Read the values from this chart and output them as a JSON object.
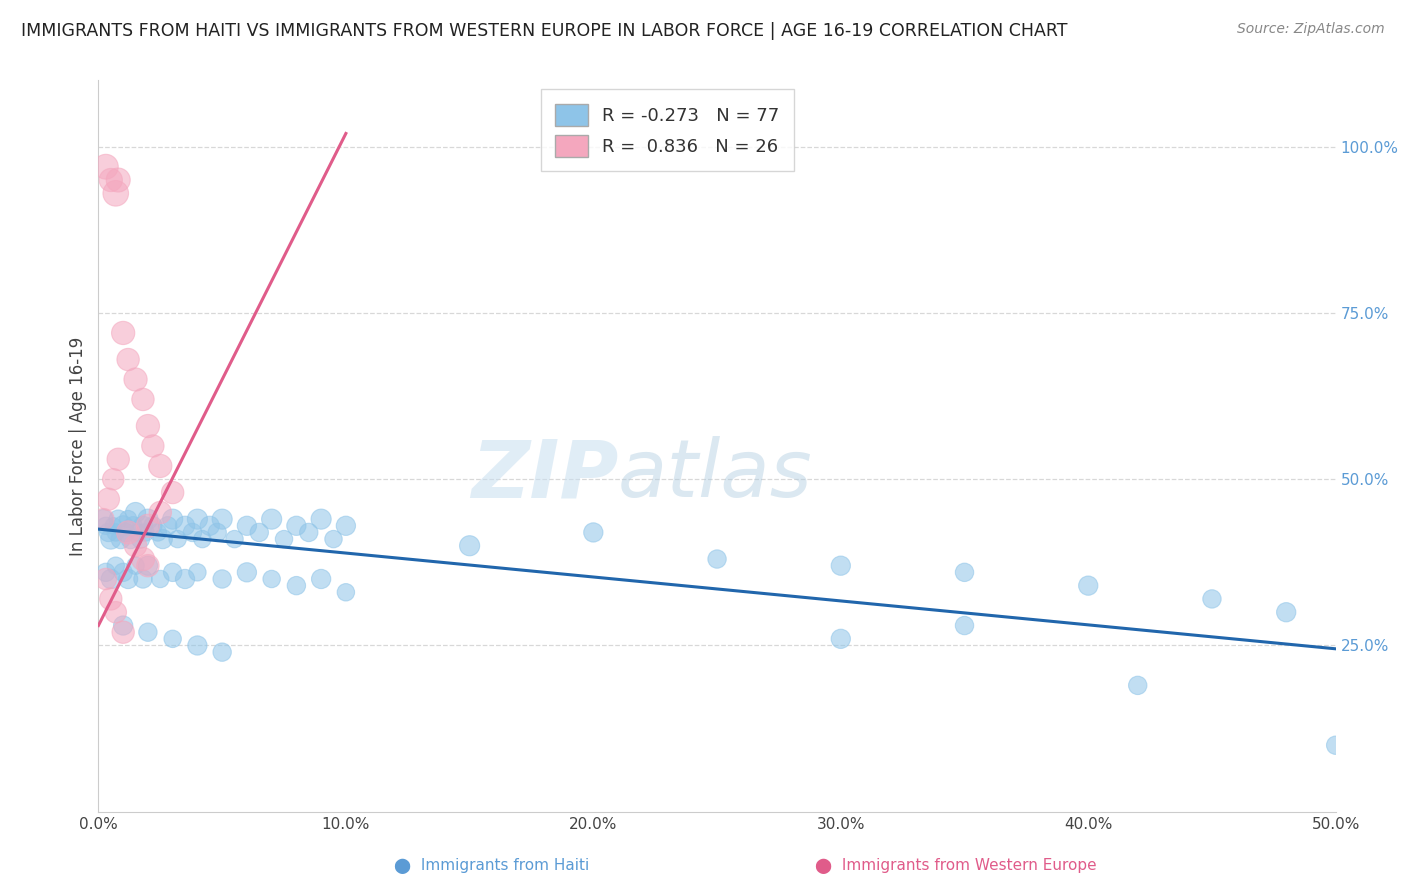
{
  "title": "IMMIGRANTS FROM HAITI VS IMMIGRANTS FROM WESTERN EUROPE IN LABOR FORCE | AGE 16-19 CORRELATION CHART",
  "source": "Source: ZipAtlas.com",
  "ylabel": "In Labor Force | Age 16-19",
  "legend_haiti": "Immigrants from Haiti",
  "legend_europe": "Immigrants from Western Europe",
  "r_haiti": -0.273,
  "n_haiti": 77,
  "r_europe": 0.836,
  "n_europe": 26,
  "xlim": [
    0.0,
    0.5
  ],
  "ylim": [
    0.0,
    1.1
  ],
  "xtick_labels": [
    "0.0%",
    "10.0%",
    "20.0%",
    "30.0%",
    "40.0%",
    "50.0%"
  ],
  "xtick_vals": [
    0.0,
    0.1,
    0.2,
    0.3,
    0.4,
    0.5
  ],
  "ytick_right_labels": [
    "25.0%",
    "50.0%",
    "75.0%",
    "100.0%"
  ],
  "ytick_right_vals": [
    0.25,
    0.5,
    0.75,
    1.0
  ],
  "color_haiti": "#8ec4e8",
  "color_europe": "#f4a7be",
  "color_haiti_line": "#2166ac",
  "color_europe_line": "#e05c8a",
  "watermark_zip": "ZIP",
  "watermark_atlas": "atlas",
  "background_color": "#ffffff",
  "grid_color": "#d8d8d8",
  "haiti_points": [
    [
      0.002,
      0.44,
      55
    ],
    [
      0.003,
      0.43,
      45
    ],
    [
      0.004,
      0.42,
      50
    ],
    [
      0.005,
      0.41,
      60
    ],
    [
      0.006,
      0.43,
      40
    ],
    [
      0.007,
      0.42,
      45
    ],
    [
      0.008,
      0.44,
      50
    ],
    [
      0.009,
      0.41,
      55
    ],
    [
      0.01,
      0.43,
      60
    ],
    [
      0.011,
      0.42,
      50
    ],
    [
      0.012,
      0.44,
      45
    ],
    [
      0.013,
      0.41,
      55
    ],
    [
      0.014,
      0.43,
      50
    ],
    [
      0.015,
      0.45,
      60
    ],
    [
      0.016,
      0.42,
      45
    ],
    [
      0.017,
      0.41,
      50
    ],
    [
      0.018,
      0.43,
      55
    ],
    [
      0.019,
      0.42,
      45
    ],
    [
      0.02,
      0.44,
      60
    ],
    [
      0.022,
      0.43,
      50
    ],
    [
      0.024,
      0.42,
      45
    ],
    [
      0.026,
      0.41,
      55
    ],
    [
      0.028,
      0.43,
      50
    ],
    [
      0.03,
      0.44,
      60
    ],
    [
      0.032,
      0.41,
      45
    ],
    [
      0.035,
      0.43,
      55
    ],
    [
      0.038,
      0.42,
      50
    ],
    [
      0.04,
      0.44,
      60
    ],
    [
      0.042,
      0.41,
      45
    ],
    [
      0.045,
      0.43,
      55
    ],
    [
      0.048,
      0.42,
      50
    ],
    [
      0.05,
      0.44,
      60
    ],
    [
      0.055,
      0.41,
      45
    ],
    [
      0.06,
      0.43,
      55
    ],
    [
      0.065,
      0.42,
      50
    ],
    [
      0.07,
      0.44,
      60
    ],
    [
      0.075,
      0.41,
      45
    ],
    [
      0.08,
      0.43,
      55
    ],
    [
      0.085,
      0.42,
      50
    ],
    [
      0.09,
      0.44,
      60
    ],
    [
      0.095,
      0.41,
      45
    ],
    [
      0.1,
      0.43,
      55
    ],
    [
      0.003,
      0.36,
      50
    ],
    [
      0.005,
      0.35,
      55
    ],
    [
      0.007,
      0.37,
      45
    ],
    [
      0.01,
      0.36,
      50
    ],
    [
      0.012,
      0.35,
      55
    ],
    [
      0.015,
      0.37,
      45
    ],
    [
      0.018,
      0.35,
      50
    ],
    [
      0.02,
      0.37,
      55
    ],
    [
      0.025,
      0.35,
      45
    ],
    [
      0.03,
      0.36,
      50
    ],
    [
      0.035,
      0.35,
      55
    ],
    [
      0.04,
      0.36,
      45
    ],
    [
      0.05,
      0.35,
      50
    ],
    [
      0.06,
      0.36,
      55
    ],
    [
      0.07,
      0.35,
      45
    ],
    [
      0.08,
      0.34,
      50
    ],
    [
      0.09,
      0.35,
      55
    ],
    [
      0.1,
      0.33,
      45
    ],
    [
      0.01,
      0.28,
      55
    ],
    [
      0.02,
      0.27,
      50
    ],
    [
      0.03,
      0.26,
      45
    ],
    [
      0.04,
      0.25,
      55
    ],
    [
      0.05,
      0.24,
      50
    ],
    [
      0.15,
      0.4,
      60
    ],
    [
      0.2,
      0.42,
      55
    ],
    [
      0.25,
      0.38,
      50
    ],
    [
      0.3,
      0.37,
      55
    ],
    [
      0.35,
      0.36,
      50
    ],
    [
      0.4,
      0.34,
      55
    ],
    [
      0.45,
      0.32,
      50
    ],
    [
      0.48,
      0.3,
      55
    ],
    [
      0.35,
      0.28,
      50
    ],
    [
      0.3,
      0.26,
      55
    ],
    [
      0.42,
      0.19,
      50
    ],
    [
      0.5,
      0.1,
      50
    ]
  ],
  "europe_points": [
    [
      0.003,
      0.97,
      80
    ],
    [
      0.005,
      0.95,
      70
    ],
    [
      0.007,
      0.93,
      85
    ],
    [
      0.008,
      0.95,
      75
    ],
    [
      0.01,
      0.72,
      70
    ],
    [
      0.012,
      0.68,
      65
    ],
    [
      0.015,
      0.65,
      70
    ],
    [
      0.018,
      0.62,
      65
    ],
    [
      0.02,
      0.58,
      70
    ],
    [
      0.022,
      0.55,
      65
    ],
    [
      0.025,
      0.52,
      70
    ],
    [
      0.03,
      0.48,
      65
    ],
    [
      0.012,
      0.42,
      70
    ],
    [
      0.015,
      0.4,
      65
    ],
    [
      0.018,
      0.38,
      70
    ],
    [
      0.02,
      0.37,
      65
    ],
    [
      0.003,
      0.35,
      60
    ],
    [
      0.005,
      0.32,
      65
    ],
    [
      0.007,
      0.3,
      60
    ],
    [
      0.01,
      0.27,
      65
    ],
    [
      0.002,
      0.44,
      60
    ],
    [
      0.004,
      0.47,
      65
    ],
    [
      0.006,
      0.5,
      60
    ],
    [
      0.008,
      0.53,
      65
    ],
    [
      0.02,
      0.43,
      70
    ],
    [
      0.025,
      0.45,
      65
    ]
  ],
  "haiti_trendline": [
    [
      0.0,
      0.425
    ],
    [
      0.5,
      0.245
    ]
  ],
  "europe_trendline": [
    [
      0.0,
      0.28
    ],
    [
      0.1,
      1.02
    ]
  ]
}
